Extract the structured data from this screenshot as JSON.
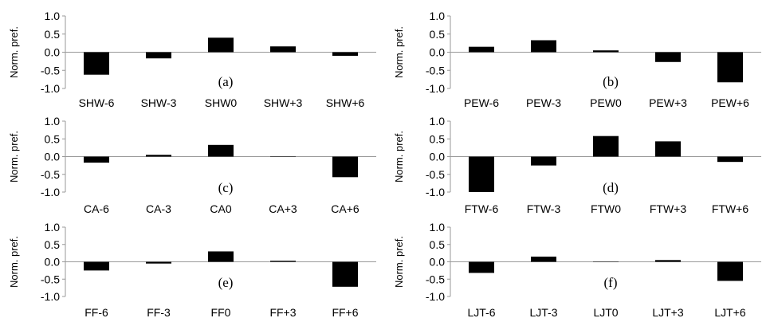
{
  "chart_data": [
    {
      "type": "bar",
      "panel_label": "(a)",
      "ylabel": "Norm. pref.",
      "ylim": [
        -1.0,
        1.0
      ],
      "yticks": [
        "1.0",
        "0.5",
        "0.0",
        "-0.5",
        "-1.0"
      ],
      "categories": [
        "SHW-6",
        "SHW-3",
        "SHW0",
        "SHW+3",
        "SHW+6"
      ],
      "values": [
        -0.62,
        -0.17,
        0.4,
        0.16,
        -0.1
      ],
      "bar_color": "#000000",
      "grid": false
    },
    {
      "type": "bar",
      "panel_label": "(b)",
      "ylabel": "Norm. pref.",
      "ylim": [
        -1.0,
        1.0
      ],
      "yticks": [
        "1.0",
        "0.5",
        "0.0",
        "-0.5",
        "-1.0"
      ],
      "categories": [
        "PEW-6",
        "PEW-3",
        "PEW0",
        "PEW+3",
        "PEW+6"
      ],
      "values": [
        0.15,
        0.33,
        0.05,
        -0.27,
        -0.83
      ],
      "bar_color": "#000000",
      "grid": false
    },
    {
      "type": "bar",
      "panel_label": "(c)",
      "ylabel": "Norm. pref.",
      "ylim": [
        -1.0,
        1.0
      ],
      "yticks": [
        "1.0",
        "0.5",
        "0.0",
        "-0.5",
        "-1.0"
      ],
      "categories": [
        "CA-6",
        "CA-3",
        "CA0",
        "CA+3",
        "CA+6"
      ],
      "values": [
        -0.17,
        0.05,
        0.33,
        0.0,
        -0.58
      ],
      "bar_color": "#000000",
      "grid": false
    },
    {
      "type": "bar",
      "panel_label": "(d)",
      "ylabel": "Norm. pref.",
      "ylim": [
        -1.0,
        1.0
      ],
      "yticks": [
        "1.0",
        "0.5",
        "0.0",
        "-0.5",
        "-1.0"
      ],
      "categories": [
        "FTW-6",
        "FTW-3",
        "FTW0",
        "FTW+3",
        "FTW+6"
      ],
      "values": [
        -1.0,
        -0.25,
        0.58,
        0.43,
        -0.15
      ],
      "bar_color": "#000000",
      "grid": false
    },
    {
      "type": "bar",
      "panel_label": "(e)",
      "ylabel": "Norm. pref.",
      "ylim": [
        -1.0,
        1.0
      ],
      "yticks": [
        "1.0",
        "0.5",
        "0.0",
        "-0.5",
        "-1.0"
      ],
      "categories": [
        "FF-6",
        "FF-3",
        "FF0",
        "FF+3",
        "FF+6"
      ],
      "values": [
        -0.25,
        -0.05,
        0.3,
        0.03,
        -0.72
      ],
      "bar_color": "#000000",
      "grid": false
    },
    {
      "type": "bar",
      "panel_label": "(f)",
      "ylabel": "Norm. pref.",
      "ylim": [
        -1.0,
        1.0
      ],
      "yticks": [
        "1.0",
        "0.5",
        "0.0",
        "-0.5",
        "-1.0"
      ],
      "categories": [
        "LJT-6",
        "LJT-3",
        "LJT0",
        "LJT+3",
        "LJT+6"
      ],
      "values": [
        -0.32,
        0.15,
        0.0,
        0.05,
        -0.55
      ],
      "bar_color": "#000000",
      "grid": false
    }
  ]
}
